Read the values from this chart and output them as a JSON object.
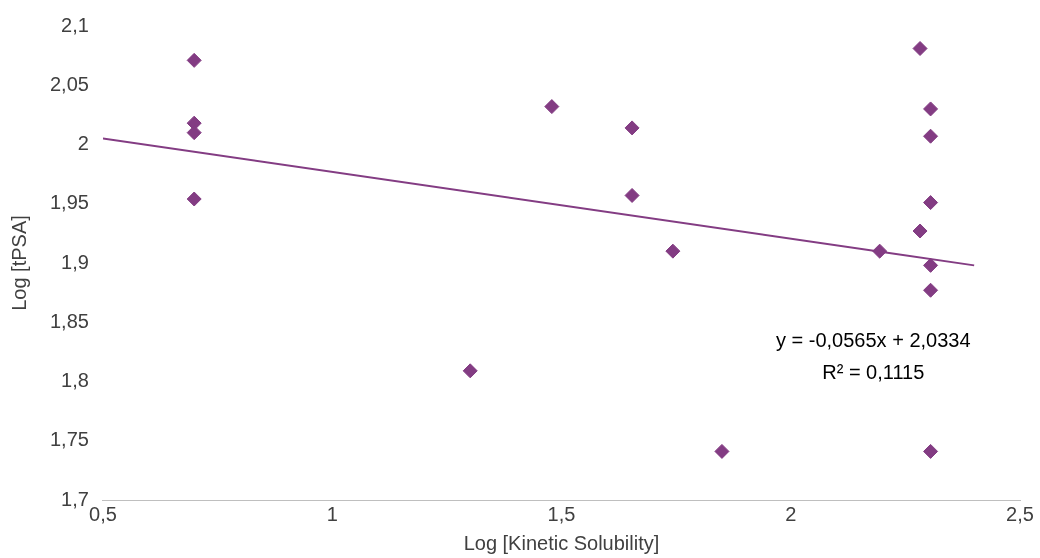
{
  "chart_data": {
    "type": "scatter",
    "xlabel": "Log [Kinetic Solubility]",
    "ylabel": "Log [tPSA]",
    "x": [
      0.699,
      0.699,
      0.699,
      0.699,
      1.301,
      1.479,
      1.654,
      1.654,
      1.743,
      1.85,
      2.194,
      2.282,
      2.282,
      2.305,
      2.305,
      2.305,
      2.305,
      2.305,
      2.305
    ],
    "series": [
      {
        "type": "scatter",
        "marker": "diamond",
        "color": "#833c83",
        "values": [
          2.071,
          2.018,
          2.01,
          1.954,
          1.809,
          2.032,
          2.014,
          1.957,
          1.91,
          1.741,
          1.91,
          2.081,
          1.927,
          2.03,
          2.007,
          1.951,
          1.898,
          1.877,
          1.741
        ]
      },
      {
        "type": "line",
        "marker": "none",
        "color": "#833c83",
        "x": [
          0.5,
          2.4
        ],
        "values": [
          2.005,
          1.898
        ]
      }
    ],
    "xlim": [
      0.5,
      2.5
    ],
    "xticks": [
      {
        "value": 0.5,
        "label": "0,5"
      },
      1,
      {
        "value": 1.5,
        "label": "1,5"
      },
      2,
      {
        "value": 2.5,
        "label": "2,5"
      }
    ],
    "ylim": [
      1.7,
      2.1
    ],
    "yticks": [
      {
        "value": 1.7,
        "label": "1,7"
      },
      {
        "value": 1.75,
        "label": "1,75"
      },
      {
        "value": 1.8,
        "label": "1,8"
      },
      {
        "value": 1.85,
        "label": "1,85"
      },
      {
        "value": 1.9,
        "label": "1,9"
      },
      {
        "value": 1.95,
        "label": "1,95"
      },
      2,
      {
        "value": 2.05,
        "label": "2,05"
      },
      {
        "value": 2.1,
        "label": "2,1"
      }
    ],
    "line_style": "solid",
    "grid": false,
    "legend": false,
    "annotations": [
      "y = -0,0565x + 2,0334",
      "R² = 0,1115"
    ]
  }
}
